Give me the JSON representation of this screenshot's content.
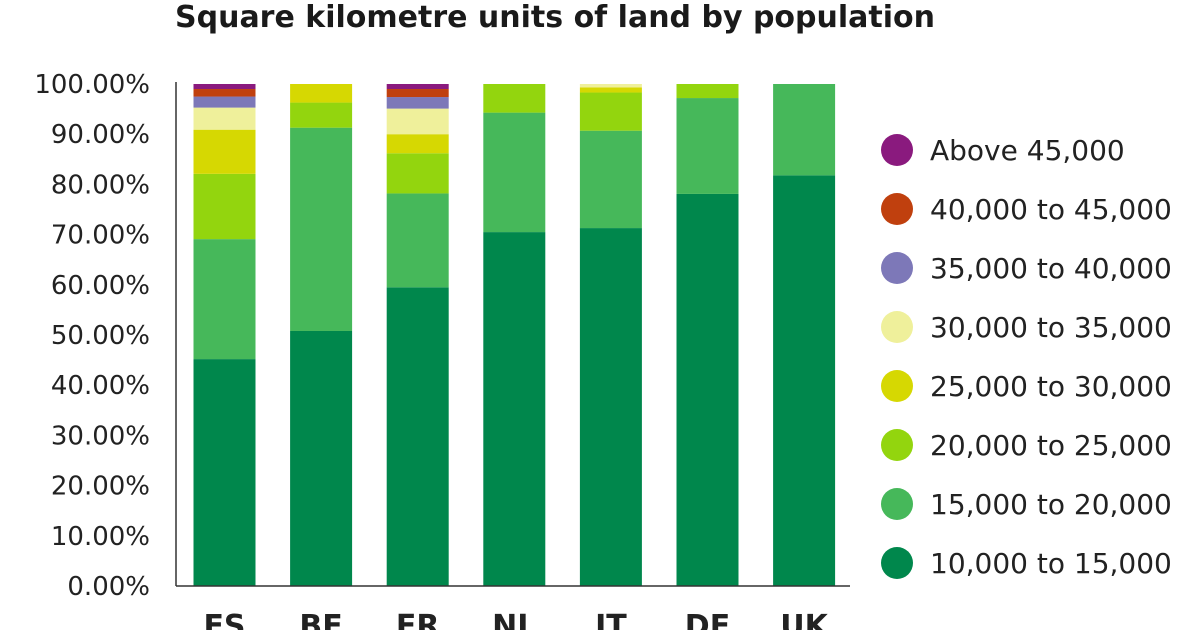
{
  "chart_data": {
    "type": "bar",
    "stacked": true,
    "title": "Square kilometre units of land by population",
    "xlabel": "",
    "ylabel": "",
    "ylim": [
      0,
      100
    ],
    "y_ticks": [
      "0.00%",
      "10.00%",
      "20.00%",
      "30.00%",
      "40.00%",
      "50.00%",
      "60.00%",
      "70.00%",
      "80.00%",
      "90.00%",
      "100.00%"
    ],
    "categories": [
      "ES",
      "BE",
      "FR",
      "NL",
      "IT",
      "DE",
      "UK"
    ],
    "legend_position": "right",
    "series": [
      {
        "name": "10,000 to 15,000",
        "color": "#00874c",
        "values": [
          45.2,
          50.8,
          59.5,
          70.5,
          71.3,
          78.1,
          81.8
        ]
      },
      {
        "name": "15,000 to 20,000",
        "color": "#46b85a",
        "values": [
          23.9,
          40.5,
          18.7,
          23.8,
          19.4,
          19.1,
          18.2
        ]
      },
      {
        "name": "20,000 to 25,000",
        "color": "#93d50e",
        "values": [
          13.0,
          5.0,
          8.0,
          5.7,
          7.6,
          2.8,
          0
        ]
      },
      {
        "name": "25,000 to 30,000",
        "color": "#d6d802",
        "values": [
          8.8,
          3.7,
          3.8,
          0,
          1.0,
          0,
          0
        ]
      },
      {
        "name": "30,000 to 35,000",
        "color": "#eff09b",
        "values": [
          4.4,
          0,
          5.1,
          0,
          0.7,
          0,
          0
        ]
      },
      {
        "name": "35,000 to 40,000",
        "color": "#7d78b8",
        "values": [
          2.2,
          0,
          2.3,
          0,
          0,
          0,
          0
        ]
      },
      {
        "name": "40,000 to 45,000",
        "color": "#c0400e",
        "values": [
          1.5,
          0,
          1.6,
          0,
          0,
          0,
          0
        ]
      },
      {
        "name": "Above 45,000",
        "color": "#8a1a7e",
        "values": [
          1.0,
          0,
          1.0,
          0,
          0,
          0,
          0
        ]
      }
    ]
  }
}
